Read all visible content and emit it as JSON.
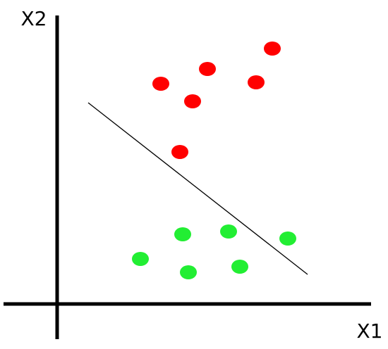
{
  "axes": {
    "x_label": "X1",
    "y_label": "X2"
  }
}
